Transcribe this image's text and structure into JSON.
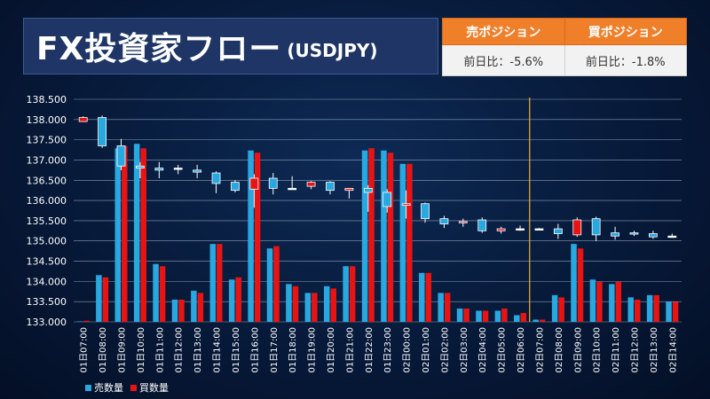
{
  "header": {
    "title": "FX投資家フロー",
    "subtitle": "(USDJPY)"
  },
  "positions": {
    "sell_label": "売ポジション",
    "buy_label": "買ポジション",
    "sell_change": "前日比：-5.6%",
    "buy_change": "前日比：-1.8%",
    "header_color": "#f07f2a"
  },
  "chart_data": {
    "type": "bar",
    "subtype": "candlestick-with-volume",
    "title": "",
    "xlabel": "",
    "ylabel": "",
    "ylim": [
      133.0,
      138.5
    ],
    "yticks": [
      "138.500",
      "138.000",
      "137.500",
      "137.000",
      "136.500",
      "136.000",
      "135.500",
      "135.000",
      "134.500",
      "134.000",
      "133.500",
      "133.000"
    ],
    "grid": true,
    "legend_position": "bottom-left",
    "categories": [
      "01日07:00",
      "01日08:00",
      "01日09:00",
      "01日10:00",
      "01日11:00",
      "01日12:00",
      "01日13:00",
      "01日14:00",
      "01日15:00",
      "01日16:00",
      "01日17:00",
      "01日18:00",
      "01日19:00",
      "01日20:00",
      "01日21:00",
      "01日22:00",
      "01日23:00",
      "02日00:00",
      "02日01:00",
      "02日02:00",
      "02日03:00",
      "02日04:00",
      "02日05:00",
      "02日06:00",
      "02日07:00",
      "02日08:00",
      "02日09:00",
      "02日10:00",
      "02日11:00",
      "02日12:00",
      "02日13:00",
      "02日14:00"
    ],
    "separator_after_index": 23,
    "candles": {
      "open": [
        137.95,
        138.05,
        137.35,
        136.85,
        136.8,
        136.8,
        136.75,
        136.68,
        136.45,
        136.28,
        136.55,
        136.3,
        136.35,
        136.45,
        136.25,
        136.3,
        136.2,
        135.88,
        135.92,
        135.55,
        135.45,
        135.52,
        135.25,
        135.3,
        135.3,
        135.3,
        135.15,
        135.55,
        135.2,
        135.2,
        135.18,
        135.12
      ],
      "close": [
        138.05,
        137.35,
        136.85,
        136.8,
        136.75,
        136.8,
        136.7,
        136.42,
        136.25,
        136.55,
        136.3,
        136.3,
        136.45,
        136.25,
        136.3,
        136.2,
        135.85,
        135.92,
        135.55,
        135.42,
        135.48,
        135.25,
        135.3,
        135.3,
        135.3,
        135.18,
        135.52,
        135.15,
        135.12,
        135.18,
        135.1,
        135.12
      ],
      "high": [
        138.08,
        138.1,
        137.52,
        136.95,
        136.95,
        136.88,
        136.88,
        136.72,
        136.5,
        136.65,
        136.68,
        136.6,
        136.48,
        136.48,
        136.3,
        136.38,
        136.28,
        136.25,
        135.95,
        135.62,
        135.55,
        135.58,
        135.35,
        135.38,
        135.32,
        135.42,
        135.58,
        135.6,
        135.35,
        135.25,
        135.25,
        135.18
      ],
      "low": [
        137.95,
        137.3,
        136.75,
        136.55,
        136.55,
        136.65,
        136.55,
        136.18,
        136.2,
        135.82,
        136.15,
        136.28,
        136.28,
        136.15,
        136.05,
        135.72,
        135.7,
        135.55,
        135.45,
        135.32,
        135.35,
        135.2,
        135.18,
        135.25,
        135.28,
        135.05,
        135.1,
        135.0,
        135.03,
        135.12,
        135.05,
        135.08
      ]
    },
    "series": [
      {
        "name": "売数量",
        "color": "#29a8e0",
        "values": [
          0.2,
          21,
          78,
          80,
          26,
          10,
          14,
          35,
          19,
          77,
          33,
          17,
          13,
          16,
          25,
          77,
          77,
          71,
          22,
          13,
          6,
          5,
          5,
          3,
          1,
          12,
          35,
          19,
          17,
          11,
          12,
          9
        ]
      },
      {
        "name": "買数量",
        "color": "#e81414",
        "values": [
          0.5,
          20,
          79,
          78,
          25,
          10,
          13,
          35,
          20,
          76,
          34,
          16,
          13,
          15,
          25,
          78,
          76,
          71,
          22,
          13,
          6,
          5,
          6,
          4,
          1,
          11,
          33,
          18,
          18,
          10,
          12,
          9
        ]
      }
    ],
    "up_color": "#e81414",
    "down_color": "#29a8e0",
    "separator_color": "#f0b030"
  }
}
